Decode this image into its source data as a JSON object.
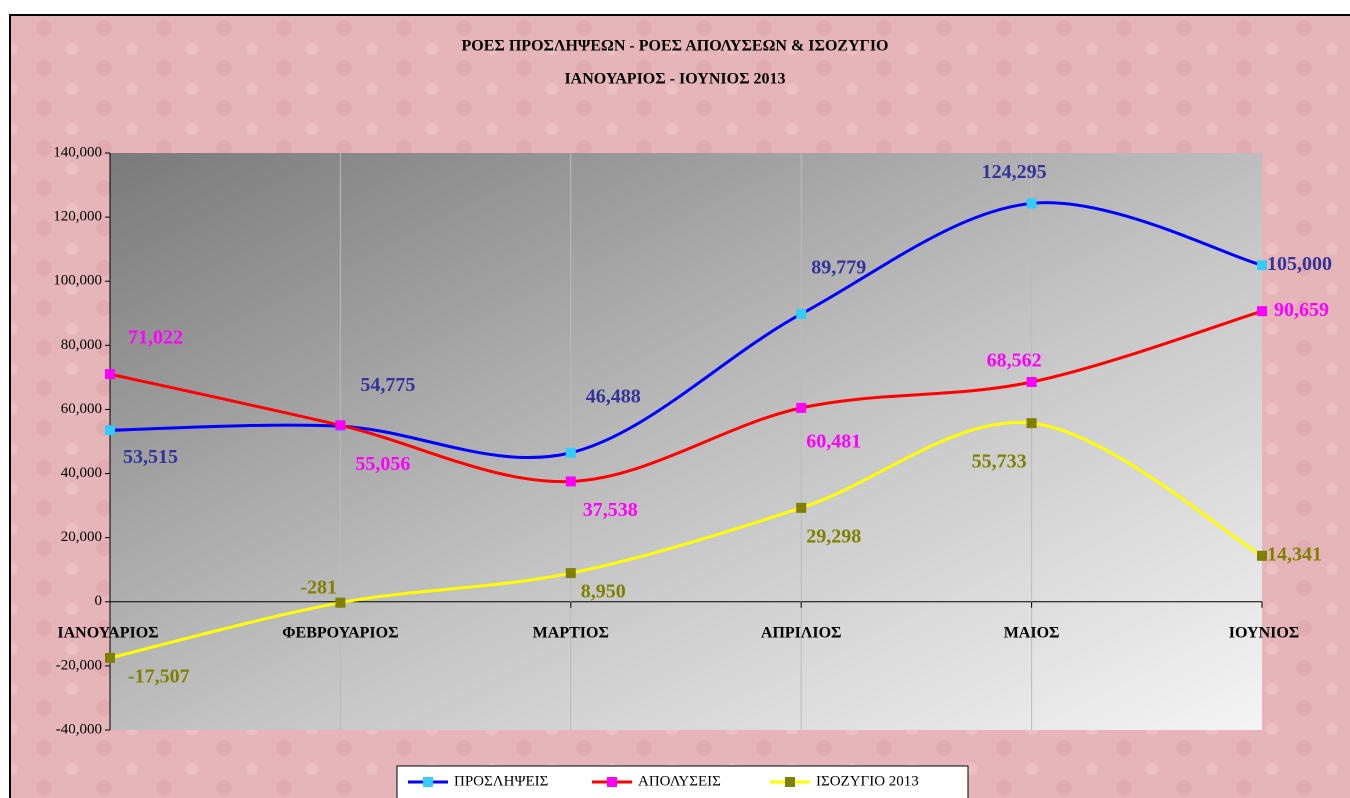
{
  "chart_data": {
    "type": "line",
    "title": "ΡΟΕΣ ΠΡΟΣΛΗΨΕΩΝ -  ΡΟΕΣ ΑΠΟΛΥΣΕΩΝ  & ΙΣΟΖΥΓΙΟ",
    "subtitle": "ΙΑΝΟΥΑΡΙΟΣ - ΙΟΥΝΙΟΣ  2013",
    "categories": [
      "ΙΑΝΟΥΑΡΙΟΣ",
      "ΦΕΒΡΟΥΑΡΙΟΣ",
      "ΜΑΡΤΙΟΣ",
      "ΑΠΡΙΛΙΟΣ",
      "ΜΑΙΟΣ",
      "ΙΟΥΝΙΟΣ"
    ],
    "series": [
      {
        "name": "ΠΡΟΣΛΗΨΕΙΣ",
        "color": "#0000ff",
        "marker_color": "#33ccff",
        "label_color": "#333399",
        "values": [
          53515,
          54775,
          46488,
          89779,
          124295,
          105000
        ],
        "value_labels": [
          "53,515",
          "54,775",
          "46,488",
          "89,779",
          "124,295",
          "105,000"
        ]
      },
      {
        "name": "ΑΠΟΛΥΣΕΙΣ",
        "color": "#ff0000",
        "marker_color": "#ff00ff",
        "label_color": "#ff00ff",
        "values": [
          71022,
          55056,
          37538,
          60481,
          68562,
          90659
        ],
        "value_labels": [
          "71,022",
          "55,056",
          "37,538",
          "60,481",
          "68,562",
          "90,659"
        ]
      },
      {
        "name": "ΙΣΟΖΥΓΙΟ 2013",
        "color": "#ffff00",
        "marker_color": "#808000",
        "label_color": "#808000",
        "values": [
          -17507,
          -281,
          8950,
          29298,
          55733,
          14341
        ],
        "value_labels": [
          "-17,507",
          "-281",
          "8,950",
          "29,298",
          "55,733",
          "14,341"
        ]
      }
    ],
    "ylim": [
      -40000,
      140000
    ],
    "yticks": [
      {
        "value": -40000,
        "label": "-40,000"
      },
      {
        "value": -20000,
        "label": "-20,000"
      },
      0,
      {
        "value": 20000,
        "label": "20,000"
      },
      {
        "value": 40000,
        "label": "40,000"
      },
      {
        "value": 60000,
        "label": "60,000"
      },
      {
        "value": 80000,
        "label": "80,000"
      },
      {
        "value": 100000,
        "label": "100,000"
      },
      {
        "value": 120000,
        "label": "120,000"
      },
      {
        "value": 140000,
        "label": "140,000"
      }
    ],
    "grid": true,
    "legend": "bottom"
  }
}
